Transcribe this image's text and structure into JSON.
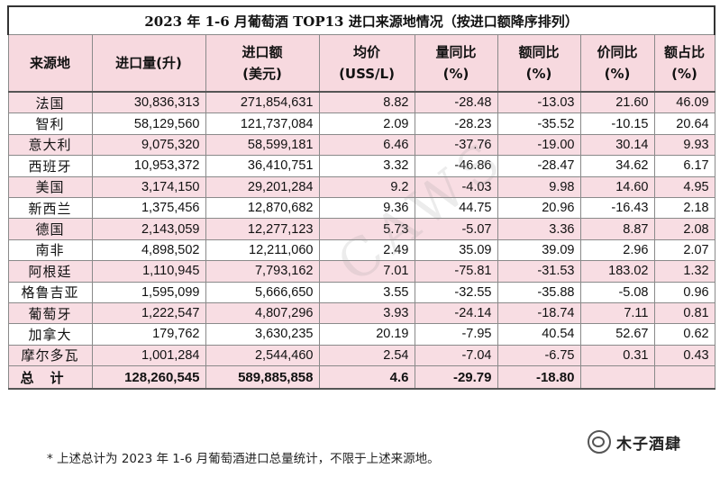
{
  "title": "2023 年 1-6 月葡萄酒 TOP13 进口来源地情况（按进口额降序排列）",
  "headers": [
    [
      "来源地"
    ],
    [
      "进口量(升)"
    ],
    [
      "进口额",
      "(美元)"
    ],
    [
      "均价",
      "(USS/L)"
    ],
    [
      "量同比",
      "(%)"
    ],
    [
      "额同比",
      "(%)"
    ],
    [
      "价同比",
      "(%)"
    ],
    [
      "额占比",
      "(%)"
    ]
  ],
  "rows": [
    [
      "法国",
      "30,836,313",
      "271,854,631",
      "8.82",
      "-28.48",
      "-13.03",
      "21.60",
      "46.09"
    ],
    [
      "智利",
      "58,129,560",
      "121,737,084",
      "2.09",
      "-28.23",
      "-35.52",
      "-10.15",
      "20.64"
    ],
    [
      "意大利",
      "9,075,320",
      "58,599,181",
      "6.46",
      "-37.76",
      "-19.00",
      "30.14",
      "9.93"
    ],
    [
      "西班牙",
      "10,953,372",
      "36,410,751",
      "3.32",
      "-46.86",
      "-28.47",
      "34.62",
      "6.17"
    ],
    [
      "美国",
      "3,174,150",
      "29,201,284",
      "9.2",
      "-4.03",
      "9.98",
      "14.60",
      "4.95"
    ],
    [
      "新西兰",
      "1,375,456",
      "12,870,682",
      "9.36",
      "44.75",
      "20.96",
      "-16.43",
      "2.18"
    ],
    [
      "德国",
      "2,143,059",
      "12,277,123",
      "5.73",
      "-5.07",
      "3.36",
      "8.87",
      "2.08"
    ],
    [
      "南非",
      "4,898,502",
      "12,211,060",
      "2.49",
      "35.09",
      "39.09",
      "2.96",
      "2.07"
    ],
    [
      "阿根廷",
      "1,110,945",
      "7,793,162",
      "7.01",
      "-75.81",
      "-31.53",
      "183.02",
      "1.32"
    ],
    [
      "格鲁吉亚",
      "1,595,099",
      "5,666,650",
      "3.55",
      "-32.55",
      "-35.88",
      "-5.08",
      "0.96"
    ],
    [
      "葡萄牙",
      "1,222,547",
      "4,807,296",
      "3.93",
      "-24.14",
      "-18.74",
      "7.11",
      "0.81"
    ],
    [
      "加拿大",
      "179,762",
      "3,630,235",
      "20.19",
      "-7.95",
      "40.54",
      "52.67",
      "0.62"
    ],
    [
      "摩尔多瓦",
      "1,001,284",
      "2,544,460",
      "2.54",
      "-7.04",
      "-6.75",
      "0.31",
      "0.43"
    ]
  ],
  "total": [
    "总计",
    "128,260,545",
    "589,885,858",
    "4.6",
    "-29.79",
    "-18.80",
    "",
    ""
  ],
  "note": "* 上述总计为 2023 年 1-6 月葡萄酒进口总量统计，不限于上述来源地。",
  "watermark": "CAWS",
  "logo_text": "木子酒肆",
  "logo_icon": "wechat-icon"
}
